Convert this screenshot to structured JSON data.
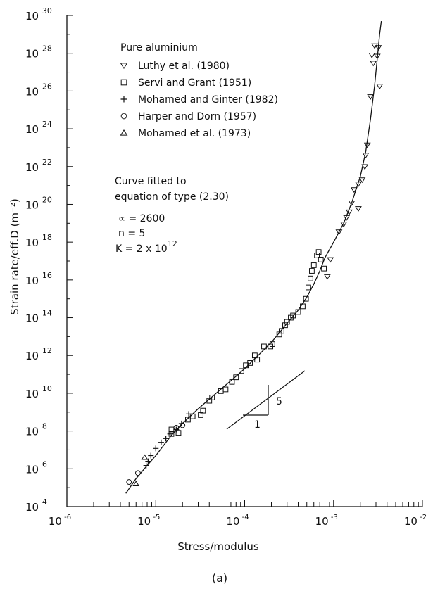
{
  "chart_data": {
    "type": "scatter",
    "xscale": "log",
    "yscale": "log",
    "xlim": [
      1e-06,
      0.01
    ],
    "ylim": [
      10000.0,
      1e+30
    ],
    "xlabel": "Stress/modulus",
    "ylabel": "Strain rate/eff.D (m⁻²)",
    "panel_label": "(a)",
    "x_ticks": [
      {
        "base": "10",
        "exp": "-6"
      },
      {
        "base": "10",
        "exp": "-5"
      },
      {
        "base": "10",
        "exp": "-4"
      },
      {
        "base": "10",
        "exp": "-3"
      },
      {
        "base": "10",
        "exp": "-2"
      }
    ],
    "y_ticks": [
      {
        "base": "10",
        "exp": "4"
      },
      {
        "base": "10",
        "exp": "6"
      },
      {
        "base": "10",
        "exp": "8"
      },
      {
        "base": "10",
        "exp": "10"
      },
      {
        "base": "10",
        "exp": "12"
      },
      {
        "base": "10",
        "exp": "14"
      },
      {
        "base": "10",
        "exp": "16"
      },
      {
        "base": "10",
        "exp": "18"
      },
      {
        "base": "10",
        "exp": "20"
      },
      {
        "base": "10",
        "exp": "22"
      },
      {
        "base": "10",
        "exp": "24"
      },
      {
        "base": "10",
        "exp": "26"
      },
      {
        "base": "10",
        "exp": "28"
      },
      {
        "base": "10",
        "exp": "30"
      }
    ],
    "legend_title": "Pure aluminium",
    "series": [
      {
        "name": "Luthy et al. (1980)",
        "marker": "triangle-down",
        "points": [
          [
            0.00085,
            1.5e+16
          ],
          [
            0.00092,
            1.2e+17
          ],
          [
            0.00115,
            3.5e+18
          ],
          [
            0.0013,
            9e+18
          ],
          [
            0.0014,
            2e+19
          ],
          [
            0.0015,
            4e+19
          ],
          [
            0.0016,
            1.2e+20
          ],
          [
            0.0017,
            6e+20
          ],
          [
            0.0019,
            1.2e+21
          ],
          [
            0.0019,
            6e+19
          ],
          [
            0.0021,
            2e+21
          ],
          [
            0.00225,
            1e+22
          ],
          [
            0.0023,
            4e+22
          ],
          [
            0.0024,
            1.4e+23
          ],
          [
            0.0026,
            5e+25
          ],
          [
            0.0027,
            8e+27
          ],
          [
            0.0028,
            3e+27
          ],
          [
            0.0029,
            2.5e+28
          ],
          [
            0.0031,
            7e+27
          ],
          [
            0.0032,
            2e+28
          ],
          [
            0.0033,
            1.8e+26
          ]
        ]
      },
      {
        "name": "Servi and Grant (1951)",
        "marker": "square",
        "points": [
          [
            1.5e-05,
            70000000.0
          ],
          [
            1.5e-05,
            120000000.0
          ],
          [
            1.8e-05,
            80000000.0
          ],
          [
            2.3e-05,
            400000000.0
          ],
          [
            2.6e-05,
            600000000.0
          ],
          [
            3.2e-05,
            700000000.0
          ],
          [
            3.4e-05,
            1200000000.0
          ],
          [
            4e-05,
            4000000000.0
          ],
          [
            4.3e-05,
            6000000000.0
          ],
          [
            5.4e-05,
            13000000000.0
          ],
          [
            6.1e-05,
            16000000000.0
          ],
          [
            7.2e-05,
            40000000000.0
          ],
          [
            8e-05,
            70000000000.0
          ],
          [
            9.2e-05,
            150000000000.0
          ],
          [
            0.000103,
            300000000000.0
          ],
          [
            0.000115,
            400000000000.0
          ],
          [
            0.00013,
            1000000000000.0
          ],
          [
            0.000138,
            600000000000.0
          ],
          [
            0.000165,
            3000000000000.0
          ],
          [
            0.000195,
            3000000000000.0
          ],
          [
            0.000205,
            4000000000000.0
          ],
          [
            0.000245,
            13000000000000.0
          ],
          [
            0.00026,
            20000000000000.0
          ],
          [
            0.000285,
            40000000000000.0
          ],
          [
            0.0003,
            60000000000000.0
          ],
          [
            0.00033,
            100000000000000.0
          ],
          [
            0.00035,
            130000000000000.0
          ],
          [
            0.0004,
            200000000000000.0
          ],
          [
            0.00045,
            400000000000000.0
          ],
          [
            0.00049,
            1000000000000000.0
          ],
          [
            0.00052,
            4000000000000000.0
          ],
          [
            0.00055,
            1.2e+16
          ],
          [
            0.00057,
            3e+16
          ],
          [
            0.0006,
            6e+16
          ],
          [
            0.00065,
            2e+17
          ],
          [
            0.00068,
            3e+17
          ],
          [
            0.00072,
            1.2e+17
          ],
          [
            0.00078,
            4e+16
          ]
        ]
      },
      {
        "name": "Mohamed and Ginter (1982)",
        "marker": "plus",
        "points": [
          [
            7.8e-06,
            1500000.0
          ],
          [
            8.2e-06,
            2500000.0
          ],
          [
            8.8e-06,
            5000000.0
          ],
          [
            1e-05,
            12000000.0
          ],
          [
            1.15e-05,
            25000000.0
          ],
          [
            1.3e-05,
            40000000.0
          ],
          [
            1.45e-05,
            70000000.0
          ],
          [
            1.7e-05,
            120000000.0
          ],
          [
            1.95e-05,
            250000000.0
          ],
          [
            2.35e-05,
            800000000.0
          ]
        ]
      },
      {
        "name": "Harper and Dorn (1957)",
        "marker": "circle",
        "points": [
          [
            5e-06,
            200000.0
          ],
          [
            6.3e-06,
            600000.0
          ],
          [
            1.7e-05,
            150000000.0
          ],
          [
            2e-05,
            200000000.0
          ]
        ]
      },
      {
        "name": "Mohamed et al. (1973)",
        "marker": "triangle-up",
        "points": [
          [
            6e-06,
            160000.0
          ],
          [
            7.5e-06,
            4000000.0
          ]
        ]
      }
    ],
    "fitted_curve": {
      "points": [
        [
          4.6e-06,
          50000.0
        ],
        [
          6e-06,
          300000.0
        ],
        [
          8e-06,
          1500000.0
        ],
        [
          1e-05,
          5000000.0
        ],
        [
          1.5e-05,
          60000000.0
        ],
        [
          2e-05,
          250000000.0
        ],
        [
          3e-05,
          1500000000.0
        ],
        [
          5e-05,
          12000000000.0
        ],
        [
          8e-05,
          80000000000.0
        ],
        [
          0.0001,
          200000000000.0
        ],
        [
          0.00015,
          1300000000000.0
        ],
        [
          0.0002,
          5000000000000.0
        ],
        [
          0.0003,
          50000000000000.0
        ],
        [
          0.0004,
          250000000000000.0
        ],
        [
          0.0005,
          1200000000000000.0
        ],
        [
          0.0006,
          6000000000000000.0
        ],
        [
          0.0007,
          3e+16
        ],
        [
          0.0008,
          1.5e+17
        ],
        [
          0.001,
          1e+18
        ],
        [
          0.0013,
          1e+19
        ],
        [
          0.0016,
          1.2e+20
        ],
        [
          0.002,
          3e+21
        ],
        [
          0.0023,
          6e+22
        ],
        [
          0.0026,
          3e+24
        ],
        [
          0.0029,
          2e+26
        ],
        [
          0.0031,
          5e+27
        ],
        [
          0.0033,
          1e+29
        ],
        [
          0.00345,
          5e+29
        ]
      ]
    },
    "annotations": {
      "fit_note": [
        "Curve fitted to",
        "equation of type (2.30)"
      ],
      "params": [
        "∝ = 2600",
        "n = 5"
      ],
      "k_param": {
        "base": "K = 2  x 10",
        "exp": "12"
      },
      "slope_rise": "5",
      "slope_run": "1"
    }
  }
}
